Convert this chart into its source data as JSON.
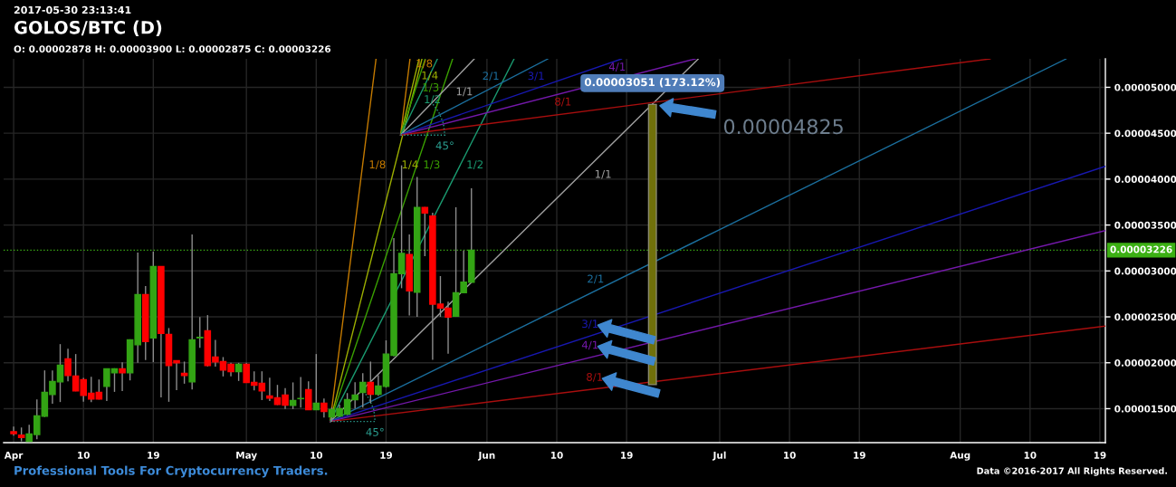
{
  "chart_data": {
    "type": "candlestick",
    "title": "GOLOS/BTC (D)",
    "subtitle": "O: 0.00002878 H: 0.00003900 L: 0.00002875 C: 0.00003226",
    "x": [
      "2017-04-01",
      "2017-04-02",
      "2017-04-03",
      "2017-04-04",
      "2017-04-05",
      "2017-04-06",
      "2017-04-07",
      "2017-04-08",
      "2017-04-09",
      "2017-04-10",
      "2017-04-11",
      "2017-04-12",
      "2017-04-13",
      "2017-04-14",
      "2017-04-15",
      "2017-04-16",
      "2017-04-17",
      "2017-04-18",
      "2017-04-19",
      "2017-04-20",
      "2017-04-21",
      "2017-04-22",
      "2017-04-23",
      "2017-04-24",
      "2017-04-25",
      "2017-04-26",
      "2017-04-27",
      "2017-04-28",
      "2017-04-29",
      "2017-04-30",
      "2017-05-01",
      "2017-05-02",
      "2017-05-03",
      "2017-05-04",
      "2017-05-05",
      "2017-05-06",
      "2017-05-07",
      "2017-05-08",
      "2017-05-09",
      "2017-05-10",
      "2017-05-11",
      "2017-05-12",
      "2017-05-13",
      "2017-05-14",
      "2017-05-15",
      "2017-05-16",
      "2017-05-17",
      "2017-05-18",
      "2017-05-19",
      "2017-05-20",
      "2017-05-21",
      "2017-05-22",
      "2017-05-23",
      "2017-05-24",
      "2017-05-25",
      "2017-05-26",
      "2017-05-27",
      "2017-05-28",
      "2017-05-29",
      "2017-05-30"
    ],
    "ohlc": [
      [
        1.249e-05,
        1.305e-05,
        1.206e-05,
        1.229e-05
      ],
      [
        1.213e-05,
        1.295e-05,
        1.144e-05,
        1.187e-05
      ],
      [
        1.144e-05,
        1.325e-05,
        1.137e-05,
        1.223e-05
      ],
      [
        1.219e-05,
        1.601e-05,
        1.167e-05,
        1.421e-05
      ],
      [
        1.417e-05,
        1.917e-05,
        1.41e-05,
        1.677e-05
      ],
      [
        1.654e-05,
        1.917e-05,
        1.555e-05,
        1.796e-05
      ],
      [
        1.792e-05,
        2.203e-05,
        1.572e-05,
        1.973e-05
      ],
      [
        2.042e-05,
        2.153e-05,
        1.799e-05,
        1.861e-05
      ],
      [
        1.855e-05,
        2.095e-05,
        1.69e-05,
        1.693e-05
      ],
      [
        1.815e-05,
        1.835e-05,
        1.575e-05,
        1.644e-05
      ],
      [
        1.667e-05,
        1.848e-05,
        1.572e-05,
        1.604e-05
      ],
      [
        1.677e-05,
        1.818e-05,
        1.6e-05,
        1.604e-05
      ],
      [
        1.742e-05,
        1.934e-05,
        1.584e-05,
        1.934e-05
      ],
      [
        1.89e-05,
        1.94e-05,
        1.683e-05,
        1.934e-05
      ],
      [
        1.934e-05,
        2.006e-05,
        1.693e-05,
        1.89e-05
      ],
      [
        1.89e-05,
        2.255e-05,
        1.808e-05,
        2.25e-05
      ],
      [
        2.196e-05,
        3.2e-05,
        2e-05,
        2.743e-05
      ],
      [
        2.743e-05,
        2.835e-05,
        2.029e-05,
        2.23e-05
      ],
      [
        2.27e-05,
        3.21e-05,
        2.006e-05,
        3.049e-05
      ],
      [
        3.049e-05,
        3.05e-05,
        1.624e-05,
        2.319e-05
      ],
      [
        2.309e-05,
        2.378e-05,
        1.575e-05,
        1.969e-05
      ],
      [
        2.023e-05,
        2.025e-05,
        1.703e-05,
        1.999e-05
      ],
      [
        1.884e-05,
        2.013e-05,
        1.772e-05,
        1.861e-05
      ],
      [
        1.792e-05,
        3.398e-05,
        1.71e-05,
        2.25e-05
      ],
      [
        2.272e-05,
        2.499e-05,
        2.163e-05,
        2.277e-05
      ],
      [
        2.348e-05,
        2.519e-05,
        1.96e-05,
        1.969e-05
      ],
      [
        2.062e-05,
        2.25e-05,
        1.957e-05,
        2.009e-05
      ],
      [
        2.013e-05,
        2.062e-05,
        1.851e-05,
        1.92e-05
      ],
      [
        1.983e-05,
        1.999e-05,
        1.851e-05,
        1.904e-05
      ],
      [
        1.904e-05,
        1.999e-05,
        1.802e-05,
        1.983e-05
      ],
      [
        1.983e-05,
        1.999e-05,
        1.78e-05,
        1.786e-05
      ],
      [
        1.786e-05,
        1.907e-05,
        1.7e-05,
        1.756e-05
      ],
      [
        1.776e-05,
        1.907e-05,
        1.594e-05,
        1.693e-05
      ],
      [
        1.638e-05,
        1.838e-05,
        1.584e-05,
        1.614e-05
      ],
      [
        1.618e-05,
        1.759e-05,
        1.54e-05,
        1.545e-05
      ],
      [
        1.648e-05,
        1.723e-05,
        1.496e-05,
        1.539e-05
      ],
      [
        1.535e-05,
        1.786e-05,
        1.496e-05,
        1.588e-05
      ],
      [
        1.609e-05,
        1.845e-05,
        1.513e-05,
        1.611e-05
      ],
      [
        1.707e-05,
        1.799e-05,
        1.485e-05,
        1.49e-05
      ],
      [
        1.49e-05,
        2.095e-05,
        1.485e-05,
        1.559e-05
      ],
      [
        1.559e-05,
        1.611e-05,
        1.404e-05,
        1.47e-05
      ],
      [
        1.411e-05,
        1.513e-05,
        1.357e-05,
        1.49e-05
      ],
      [
        1.421e-05,
        1.545e-05,
        1.41e-05,
        1.5e-05
      ],
      [
        1.44e-05,
        1.67e-05,
        1.43e-05,
        1.598e-05
      ],
      [
        1.598e-05,
        1.789e-05,
        1.503e-05,
        1.648e-05
      ],
      [
        1.677e-05,
        1.887e-05,
        1.513e-05,
        1.786e-05
      ],
      [
        1.786e-05,
        2.013e-05,
        1.561e-05,
        1.657e-05
      ],
      [
        1.657e-05,
        1.864e-05,
        1.64e-05,
        1.746e-05
      ],
      [
        1.742e-05,
        2.244e-05,
        1.73e-05,
        2.095e-05
      ],
      [
        2.082e-05,
        3.358e-05,
        2.07e-05,
        2.97e-05
      ],
      [
        2.97e-05,
        4.15e-05,
        2.812e-05,
        3.191e-05
      ],
      [
        3.178e-05,
        3.398e-05,
        2.516e-05,
        2.783e-05
      ],
      [
        2.769e-05,
        4.023e-05,
        2.5e-05,
        3.691e-05
      ],
      [
        3.691e-05,
        3.695e-05,
        3.16e-05,
        3.632e-05
      ],
      [
        3.598e-05,
        3.635e-05,
        2.033e-05,
        2.638e-05
      ],
      [
        2.638e-05,
        2.944e-05,
        2.5e-05,
        2.595e-05
      ],
      [
        2.595e-05,
        2.665e-05,
        2.098e-05,
        2.497e-05
      ],
      [
        2.506e-05,
        3.694e-05,
        2.5e-05,
        2.763e-05
      ],
      [
        2.763e-05,
        3.223e-05,
        2.76e-05,
        2.878e-05
      ],
      [
        2.878e-05,
        3.9e-05,
        2.875e-05,
        3.226e-05
      ]
    ],
    "colors": [
      "#ff0000",
      "#ff0000",
      "#33a414",
      "#33a414",
      "#33a414",
      "#33a414",
      "#33a414",
      "#ff0000",
      "#ff0000",
      "#ff0000",
      "#ff0000",
      "#ff0000",
      "#33a414",
      "#33a414",
      "#ff0000",
      "#33a414",
      "#33a414",
      "#ff0000",
      "#33a414",
      "#ff0000",
      "#ff0000",
      "#ff0000",
      "#ff0000",
      "#33a414",
      "#33a414",
      "#ff0000",
      "#ff0000",
      "#ff0000",
      "#ff0000",
      "#33a414",
      "#ff0000",
      "#ff0000",
      "#ff0000",
      "#ff0000",
      "#ff0000",
      "#ff0000",
      "#33a414",
      "#33a414",
      "#ff0000",
      "#33a414",
      "#ff0000",
      "#33a414",
      "#33a414",
      "#33a414",
      "#33a414",
      "#33a414",
      "#ff0000",
      "#33a414",
      "#33a414",
      "#33a414",
      "#33a414",
      "#ff0000",
      "#33a414",
      "#ff0000",
      "#ff0000",
      "#ff0000",
      "#ff0000",
      "#33a414",
      "#33a414",
      "#33a414"
    ],
    "series": [
      {
        "type": "line",
        "color": "#c47a00",
        "x": [
          "2017-05-11T19:00",
          "2017-05-17T17:00"
        ],
        "values": [
          1.36e-05,
          5.31e-05
        ]
      },
      {
        "type": "line",
        "color": "#9cae00",
        "x": [
          "2017-05-11T19:00",
          "2017-05-23T15:00"
        ],
        "values": [
          1.36e-05,
          5.31e-05
        ]
      },
      {
        "type": "line",
        "color": "#3aa000",
        "x": [
          "2017-05-11T19:00",
          "2017-05-27T14:00"
        ],
        "values": [
          1.36e-05,
          5.31e-05
        ]
      },
      {
        "type": "line",
        "color": "#1a9a70",
        "x": [
          "2017-05-11T19:00",
          "2017-06-04T12:00"
        ],
        "values": [
          1.36e-05,
          5.31e-05
        ]
      },
      {
        "type": "line",
        "color": "#a0a0a0",
        "x": [
          "2017-05-11T19:00",
          "2017-06-28T06:00"
        ],
        "values": [
          1.36e-05,
          5.31e-05
        ]
      },
      {
        "type": "line",
        "color": "#1b6f9e",
        "x": [
          "2017-05-11T19:00",
          "2017-08-14T16:00"
        ],
        "values": [
          1.36e-05,
          5.31e-05
        ]
      },
      {
        "type": "line",
        "color": "#1818b0",
        "x": [
          "2017-05-11T19:00",
          "2017-08-19T17:00"
        ],
        "values": [
          1.36e-05,
          4.14e-05
        ]
      },
      {
        "type": "line",
        "color": "#7418aa",
        "x": [
          "2017-05-11T19:00",
          "2017-08-19T17:00"
        ],
        "values": [
          1.36e-05,
          3.44e-05
        ]
      },
      {
        "type": "line",
        "color": "#a80e0e",
        "x": [
          "2017-05-11T19:00",
          "2017-08-19T17:00"
        ],
        "values": [
          1.36e-05,
          2.4e-05
        ]
      },
      {
        "type": "line",
        "color": "#2a9d8f",
        "line_style": "dotted",
        "x": [
          "2017-05-11T19:00",
          "2017-05-17T14:00",
          "2017-05-17T10:00",
          "2017-05-16T19:00",
          "2017-05-15T22:00"
        ],
        "values": [
          1.36e-05,
          1.36e-05,
          1.49e-05,
          1.61e-05,
          1.71e-05
        ]
      },
      {
        "type": "line",
        "color": "#c47a00",
        "x": [
          "2017-05-20T21:00",
          "2017-05-22T02:00"
        ],
        "values": [
          4.48e-05,
          5.31e-05
        ]
      },
      {
        "type": "line",
        "color": "#9cae00",
        "x": [
          "2017-05-20T21:00",
          "2017-05-23T06:00"
        ],
        "values": [
          4.48e-05,
          5.31e-05
        ]
      },
      {
        "type": "line",
        "color": "#3aa000",
        "x": [
          "2017-05-20T21:00",
          "2017-05-24T01:00"
        ],
        "values": [
          4.48e-05,
          5.31e-05
        ]
      },
      {
        "type": "line",
        "color": "#1a9a70",
        "x": [
          "2017-05-20T21:00",
          "2017-05-25T15:00"
        ],
        "values": [
          4.48e-05,
          5.31e-05
        ]
      },
      {
        "type": "line",
        "color": "#a0a0a0",
        "x": [
          "2017-05-20T21:00",
          "2017-05-30T09:00"
        ],
        "values": [
          4.48e-05,
          5.31e-05
        ]
      },
      {
        "type": "line",
        "color": "#1b6f9e",
        "x": [
          "2017-05-20T21:00",
          "2017-06-08T21:00"
        ],
        "values": [
          4.48e-05,
          5.31e-05
        ]
      },
      {
        "type": "line",
        "color": "#1818b0",
        "x": [
          "2017-05-20T21:00",
          "2017-06-18T09:00"
        ],
        "values": [
          4.48e-05,
          5.31e-05
        ]
      },
      {
        "type": "line",
        "color": "#7418aa",
        "x": [
          "2017-05-20T21:00",
          "2017-06-27T21:00"
        ],
        "values": [
          4.48e-05,
          5.31e-05
        ]
      },
      {
        "type": "line",
        "color": "#a80e0e",
        "x": [
          "2017-05-20T21:00",
          "2017-08-04T21:00"
        ],
        "values": [
          4.48e-05,
          5.31e-05
        ]
      },
      {
        "type": "line",
        "color": "#2a9d8f",
        "line_style": "dotted",
        "x": [
          "2017-05-20T21:00",
          "2017-05-26T14:00",
          "2017-05-26T09:00",
          "2017-05-25T19:00",
          "2017-05-24T22:00"
        ],
        "values": [
          4.48e-05,
          4.48e-05,
          4.61e-05,
          4.73e-05,
          4.83e-05
        ]
      },
      {
        "type": "bar",
        "color": "#70700a",
        "x": [
          "2017-06-22T08:00"
        ],
        "values": [
          3.051e-05
        ],
        "base": [
          1.762e-05
        ],
        "value_labels": [
          "0.00003051 (173.12%)"
        ]
      }
    ],
    "xlim": [
      "2017-03-30T17:00",
      "2017-08-19T17:00"
    ],
    "xticks": [
      {
        "value": "2017-04-01",
        "label": "Apr"
      },
      {
        "value": "2017-04-10",
        "label": "10"
      },
      {
        "value": "2017-04-19",
        "label": "19"
      },
      {
        "value": "2017-05-01",
        "label": "May"
      },
      {
        "value": "2017-05-10",
        "label": "10"
      },
      {
        "value": "2017-05-19",
        "label": "19"
      },
      {
        "value": "2017-06-01",
        "label": "Jun"
      },
      {
        "value": "2017-06-10",
        "label": "10"
      },
      {
        "value": "2017-06-19",
        "label": "19"
      },
      {
        "value": "2017-07-01",
        "label": "Jul"
      },
      {
        "value": "2017-07-10",
        "label": "10"
      },
      {
        "value": "2017-07-19",
        "label": "19"
      },
      {
        "value": "2017-08-01",
        "label": "Aug"
      },
      {
        "value": "2017-08-10",
        "label": "10"
      },
      {
        "value": "2017-08-19",
        "label": "19"
      }
    ],
    "ylim": [
      1.13e-05,
      5.31e-05
    ],
    "yticks": [
      {
        "value": 1.5e-05,
        "label": "0.00001500"
      },
      {
        "value": 2e-05,
        "label": "0.00002000"
      },
      {
        "value": 2.5e-05,
        "label": "0.00002500"
      },
      {
        "value": 3e-05,
        "label": "0.00003000"
      },
      {
        "value": 3.5e-05,
        "label": "0.00003500"
      },
      {
        "value": 4e-05,
        "label": "0.00004000"
      },
      {
        "value": 4.5e-05,
        "label": "0.00004500"
      },
      {
        "value": 5e-05,
        "label": "0.00005000"
      }
    ],
    "grid": true,
    "ref_lines": [
      {
        "axis": "y",
        "value": 3.226e-05,
        "label": "0.00003226",
        "color": "#3cb014",
        "line_style": "dotted"
      }
    ],
    "annotations": [
      "2017-05-30 23:13:41",
      "Professional Tools For Cryptocurrency Traders.",
      "Data ©2016-2017 All Rights Reserved.",
      {
        "text": "1/8",
        "x": "2017-05-15T23:00",
        "y": 4.15e-05
      },
      {
        "text": "1/4",
        "x": "2017-05-20T04:00",
        "y": 4.15e-05
      },
      {
        "text": "1/3",
        "x": "2017-05-22T23:00",
        "y": 4.15e-05
      },
      {
        "text": "1/2",
        "x": "2017-05-28T13:00",
        "y": 4.15e-05
      },
      {
        "text": "1/1",
        "x": "2017-06-14T07:00",
        "y": 4.15e-05
      },
      {
        "text": "2/1",
        "x": "2017-06-15T00:00",
        "y": 2.78e-05
      },
      {
        "text": "3/1",
        "x": "2017-06-14T07:00",
        "y": 2.29e-05
      },
      {
        "text": "4/1",
        "x": "2017-06-14T07:00",
        "y": 2.06e-05
      },
      {
        "text": "8/1",
        "x": "2017-06-14T21:00",
        "y": 1.71e-05
      },
      {
        "text": "45°",
        "x": "2017-05-17T14:00",
        "y": 1.36e-05
      },
      {
        "text": "1/8",
        "x": "2017-05-22T00:00",
        "y": 5.25e-05
      },
      {
        "text": "1/4",
        "x": "2017-05-22T17:00",
        "y": 5.12e-05
      },
      {
        "text": "1/3",
        "x": "2017-05-22T20:00",
        "y": 4.99e-05
      },
      {
        "text": "1/2",
        "x": "2017-05-23T01:00",
        "y": 4.86e-05
      },
      {
        "text": "1/1",
        "x": "2017-05-27T10:00",
        "y": 5.05e-05
      },
      {
        "text": "2/1",
        "x": "2017-06-01T12:00",
        "y": 4.99e-05
      },
      {
        "text": "3/1",
        "x": "2017-06-07T08:00",
        "y": 4.99e-05
      },
      {
        "text": "4/1",
        "x": "2017-06-17T19:00",
        "y": 5.09e-05
      },
      {
        "text": "8/1",
        "x": "2017-06-10T19:00",
        "y": 4.71e-05
      },
      {
        "text": "45°",
        "x": "2017-05-26T14:00",
        "y": 4.48e-05
      },
      "0.00004825"
    ]
  }
}
